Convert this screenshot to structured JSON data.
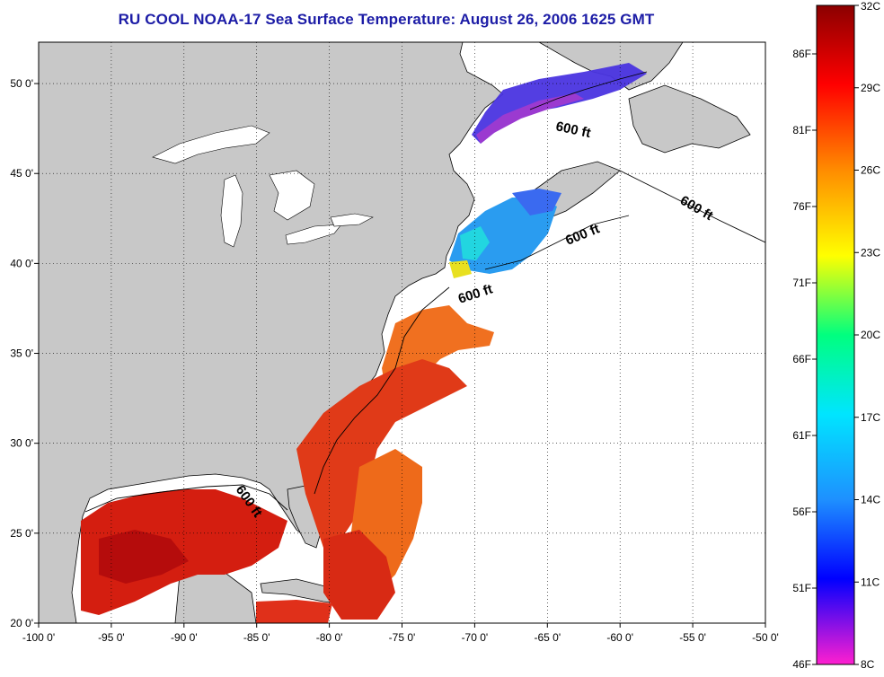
{
  "title": "RU COOL  NOAA-17  Sea Surface Temperature:  August 26, 2006 1625 GMT",
  "map": {
    "lon_range": [
      -100,
      -50
    ],
    "lat_range": [
      20,
      52.3
    ],
    "lon_ticks": [
      "-100 0'",
      "-95 0'",
      "-90 0'",
      "-85 0'",
      "-80 0'",
      "-75 0'",
      "-70 0'",
      "-65 0'",
      "-60 0'",
      "-55 0'",
      "-50 0'"
    ],
    "lat_ticks": [
      "20 0'",
      "25 0'",
      "30 0'",
      "35 0'",
      "40 0'",
      "45 0'",
      "50 0'"
    ],
    "grid": true,
    "land_color": "#c8c8c8",
    "no_data_color": "#ffffff",
    "isobath_labels": [
      "600 ft",
      "600 ft",
      "600 ft",
      "600 ft",
      "600 ft"
    ]
  },
  "colorbar": {
    "celsius_range": [
      8,
      32
    ],
    "celsius_labels": [
      "32C",
      "29C",
      "26C",
      "23C",
      "20C",
      "17C",
      "14C",
      "11C",
      "8C"
    ],
    "fahrenheit_labels": [
      "86F",
      "81F",
      "76F",
      "71F",
      "66F",
      "61F",
      "56F",
      "51F",
      "46F"
    ],
    "colors": [
      "#8b0000",
      "#ff0000",
      "#ff8c00",
      "#ffff00",
      "#00ff7f",
      "#00e5ff",
      "#1e90ff",
      "#0000ff",
      "#ff1fcf"
    ]
  }
}
